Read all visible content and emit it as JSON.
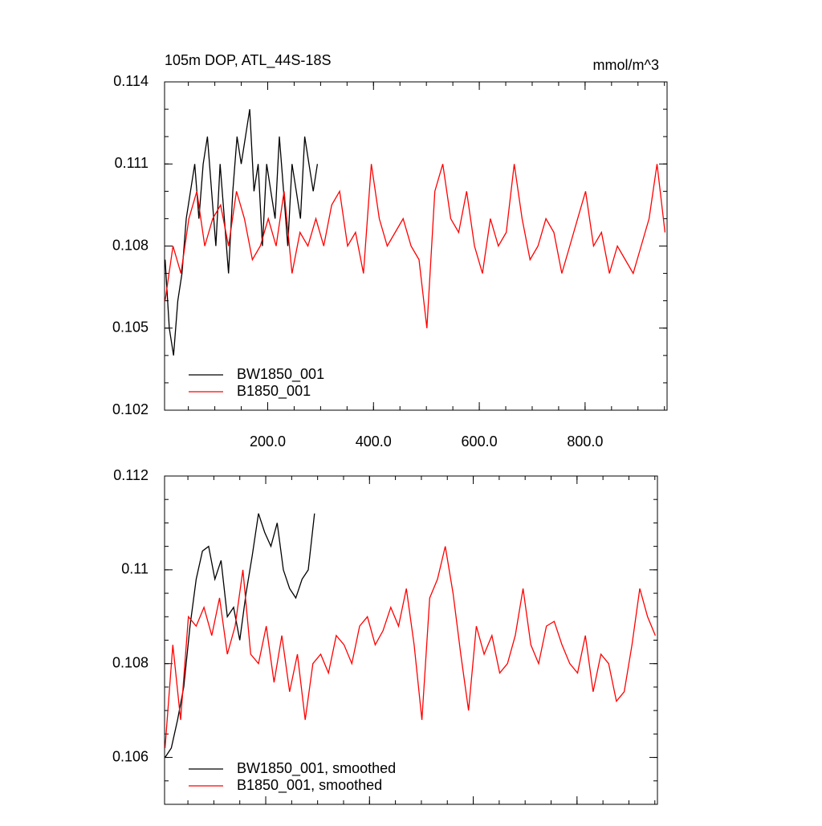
{
  "chart_data": [
    {
      "type": "line",
      "title": "105m DOP, ATL_44S-18S",
      "units": "mmol/m^3",
      "xlim": [
        5,
        955
      ],
      "xticks": [
        {
          "value": 200,
          "label": "200.0"
        },
        {
          "value": 400,
          "label": "400.0"
        },
        {
          "value": 600,
          "label": "600.0"
        },
        {
          "value": 800,
          "label": "800.0"
        }
      ],
      "ylim": [
        0.102,
        0.114
      ],
      "yticks": [
        0.102,
        0.105,
        0.108,
        0.111,
        0.114
      ],
      "legend": "lower left",
      "series": [
        {
          "name": "BW1850_001",
          "color": "#000000",
          "x": [
            6,
            14,
            22,
            30,
            38,
            46,
            54,
            62,
            70,
            78,
            86,
            94,
            102,
            110,
            118,
            126,
            134,
            142,
            150,
            158,
            166,
            174,
            182,
            190,
            198,
            206,
            214,
            222,
            230,
            238,
            246,
            254,
            262,
            270,
            278,
            286,
            294
          ],
          "values": [
            0.1075,
            0.105,
            0.104,
            0.106,
            0.107,
            0.109,
            0.11,
            0.111,
            0.109,
            0.111,
            0.112,
            0.11,
            0.108,
            0.111,
            0.109,
            0.107,
            0.11,
            0.112,
            0.111,
            0.112,
            0.113,
            0.11,
            0.111,
            0.108,
            0.111,
            0.11,
            0.109,
            0.112,
            0.11,
            0.108,
            0.111,
            0.11,
            0.109,
            0.112,
            0.111,
            0.11,
            0.111
          ]
        },
        {
          "name": "B1850_001",
          "color": "#ff0000",
          "x": [
            6,
            21,
            36,
            51,
            66,
            81,
            96,
            111,
            126,
            141,
            156,
            171,
            186,
            201,
            216,
            231,
            246,
            261,
            276,
            291,
            306,
            321,
            336,
            351,
            366,
            381,
            396,
            411,
            426,
            441,
            456,
            471,
            486,
            501,
            516,
            531,
            546,
            561,
            576,
            591,
            606,
            621,
            636,
            651,
            666,
            681,
            696,
            711,
            726,
            741,
            756,
            771,
            786,
            801,
            816,
            831,
            846,
            861,
            876,
            891,
            906,
            921,
            936,
            951
          ],
          "values": [
            0.106,
            0.108,
            0.107,
            0.109,
            0.11,
            0.108,
            0.109,
            0.1095,
            0.108,
            0.11,
            0.109,
            0.1075,
            0.108,
            0.109,
            0.108,
            0.11,
            0.107,
            0.1085,
            0.108,
            0.109,
            0.108,
            0.1095,
            0.11,
            0.108,
            0.1085,
            0.107,
            0.111,
            0.109,
            0.108,
            0.1085,
            0.109,
            0.108,
            0.1075,
            0.105,
            0.11,
            0.111,
            0.109,
            0.1085,
            0.11,
            0.108,
            0.107,
            0.109,
            0.108,
            0.1085,
            0.111,
            0.109,
            0.1075,
            0.108,
            0.109,
            0.1085,
            0.107,
            0.108,
            0.109,
            0.11,
            0.108,
            0.1085,
            0.107,
            0.108,
            0.1075,
            0.107,
            0.108,
            0.109,
            0.111,
            0.1085
          ]
        }
      ]
    },
    {
      "type": "line",
      "xlim": [
        5,
        955
      ],
      "ylim": [
        0.105,
        0.112
      ],
      "yticks": [
        0.106,
        0.108,
        0.11,
        0.112
      ],
      "legend": "lower left",
      "series": [
        {
          "name": "BW1850_001, smoothed",
          "color": "#000000",
          "x": [
            6,
            18,
            30,
            42,
            54,
            66,
            78,
            90,
            102,
            114,
            126,
            138,
            150,
            162,
            174,
            186,
            198,
            210,
            222,
            234,
            246,
            258,
            270,
            282,
            294
          ],
          "values": [
            0.106,
            0.1062,
            0.1068,
            0.1075,
            0.1088,
            0.1098,
            0.1104,
            0.1105,
            0.1098,
            0.1102,
            0.109,
            0.1092,
            0.1085,
            0.1095,
            0.1103,
            0.1112,
            0.1108,
            0.1105,
            0.111,
            0.11,
            0.1096,
            0.1094,
            0.1098,
            0.11,
            0.1112
          ]
        },
        {
          "name": "B1850_001, smoothed",
          "color": "#ff0000",
          "x": [
            6,
            21,
            36,
            51,
            66,
            81,
            96,
            111,
            126,
            141,
            156,
            171,
            186,
            201,
            216,
            231,
            246,
            261,
            276,
            291,
            306,
            321,
            336,
            351,
            366,
            381,
            396,
            411,
            426,
            441,
            456,
            471,
            486,
            501,
            516,
            531,
            546,
            561,
            576,
            591,
            606,
            621,
            636,
            651,
            666,
            681,
            696,
            711,
            726,
            741,
            756,
            771,
            786,
            801,
            816,
            831,
            846,
            861,
            876,
            891,
            906,
            921,
            936,
            951
          ],
          "values": [
            0.1062,
            0.1084,
            0.1068,
            0.109,
            0.1088,
            0.1092,
            0.1086,
            0.1094,
            0.1082,
            0.1088,
            0.11,
            0.1082,
            0.108,
            0.1088,
            0.1076,
            0.1086,
            0.1074,
            0.1082,
            0.1068,
            0.108,
            0.1082,
            0.1078,
            0.1086,
            0.1084,
            0.108,
            0.1088,
            0.109,
            0.1084,
            0.1087,
            0.1092,
            0.1088,
            0.1096,
            0.1084,
            0.1068,
            0.1094,
            0.1098,
            0.1105,
            0.1095,
            0.1082,
            0.107,
            0.1088,
            0.1082,
            0.1086,
            0.1078,
            0.108,
            0.1086,
            0.1096,
            0.1084,
            0.108,
            0.1088,
            0.1089,
            0.1084,
            0.108,
            0.1078,
            0.1086,
            0.1074,
            0.1082,
            0.108,
            0.1072,
            0.1074,
            0.1084,
            0.1096,
            0.109,
            0.1086
          ]
        }
      ]
    }
  ]
}
